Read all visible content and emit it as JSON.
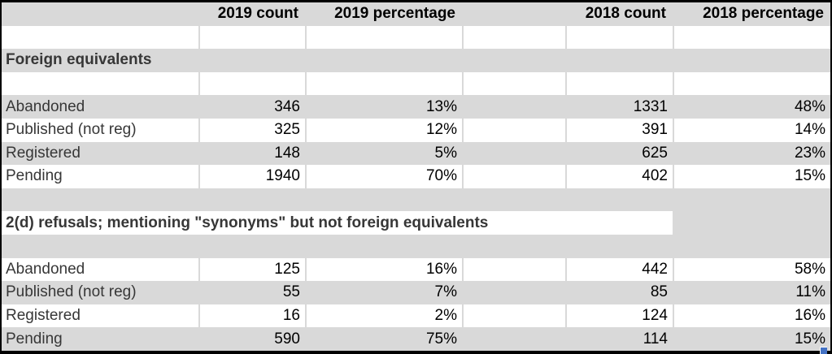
{
  "table": {
    "header": [
      "",
      "2019 count",
      "2019 percentage",
      "",
      "2018 count",
      "2018 percentage"
    ],
    "sections": [
      {
        "title": "Foreign equivalents",
        "rows": [
          {
            "label": "Abandoned",
            "count_2019": 346,
            "pct_2019": "13%",
            "count_2018": 1331,
            "pct_2018": "48%"
          },
          {
            "label": "Published (not reg)",
            "count_2019": 325,
            "pct_2019": "12%",
            "count_2018": 391,
            "pct_2018": "14%"
          },
          {
            "label": "Registered",
            "count_2019": 148,
            "pct_2019": "5%",
            "count_2018": 625,
            "pct_2018": "23%"
          },
          {
            "label": "Pending",
            "count_2019": 1940,
            "pct_2019": "70%",
            "count_2018": 402,
            "pct_2018": "15%"
          }
        ]
      },
      {
        "title": "2(d) refusals; mentioning \"synonyms\" but not foreign equivalents",
        "rows": [
          {
            "label": "Abandoned",
            "count_2019": 125,
            "pct_2019": "16%",
            "count_2018": 442,
            "pct_2018": "58%"
          },
          {
            "label": "Published (not reg)",
            "count_2019": 55,
            "pct_2019": "7%",
            "count_2018": 85,
            "pct_2018": "11%"
          },
          {
            "label": "Registered",
            "count_2019": 16,
            "pct_2019": "2%",
            "count_2018": 124,
            "pct_2018": "16%"
          },
          {
            "label": "Pending",
            "count_2019": 590,
            "pct_2019": "75%",
            "count_2018": 114,
            "pct_2018": "15%"
          }
        ]
      }
    ]
  },
  "colors": {
    "band_gray": "#d9d9d9",
    "border_black": "#000000",
    "text_black": "#000000",
    "label_gray": "#373737",
    "handle_blue": "#4472c4"
  }
}
